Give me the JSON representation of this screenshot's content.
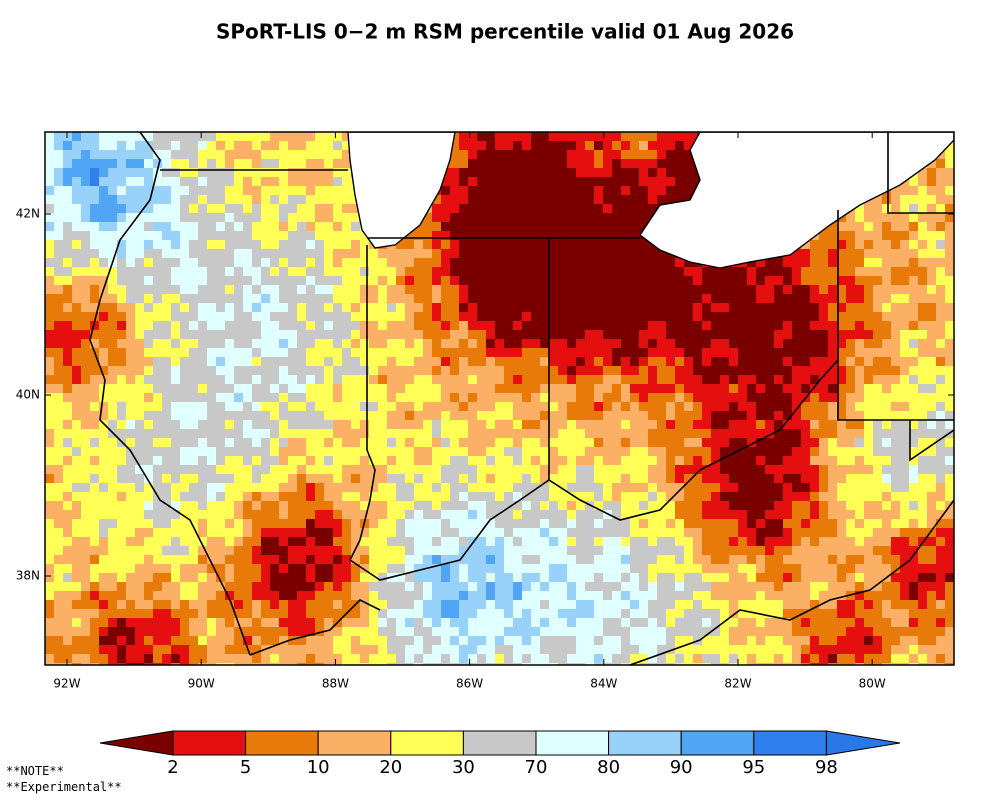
{
  "title": "SPoRT-LIS 0−2 m RSM percentile valid 01 Aug 2026",
  "longitude_labels": [
    "92W",
    "90W",
    "88W",
    "86W",
    "84W",
    "82W",
    "80W"
  ],
  "latitude_labels": [
    "42N",
    "40N",
    "38N"
  ],
  "legend": {
    "bounds": [
      2,
      5,
      10,
      20,
      30,
      70,
      80,
      90,
      95,
      98
    ],
    "colors": [
      "#7a0000",
      "#e60f0f",
      "#e87a0a",
      "#fbb066",
      "#ffff55",
      "#c8c8c8",
      "#e0ffff",
      "#98d2fa",
      "#50a5f5",
      "#2f7fee",
      "#2a78e8"
    ]
  },
  "notes": [
    "**NOTE**",
    "**Experimental**"
  ]
}
